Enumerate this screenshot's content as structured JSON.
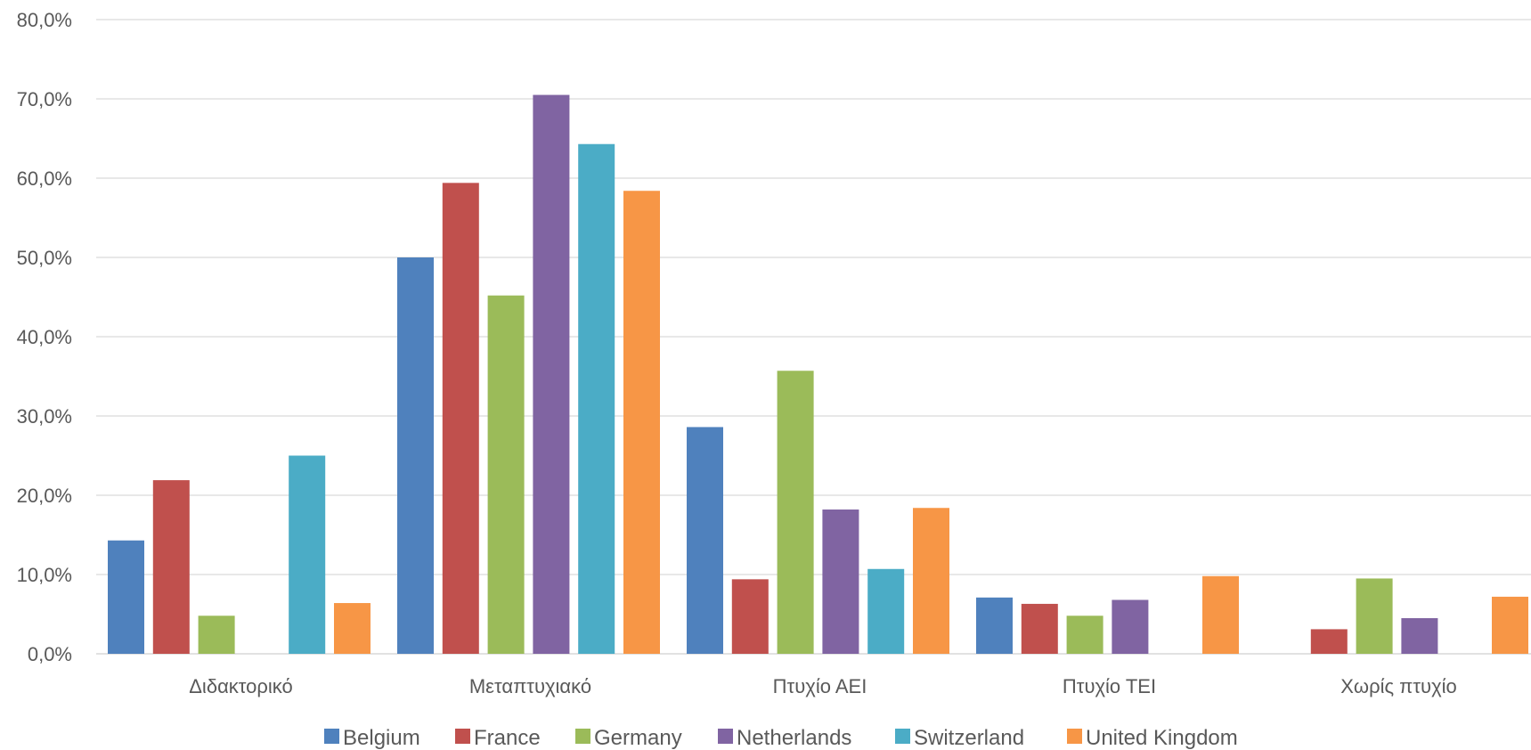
{
  "chart_data": {
    "type": "bar",
    "categories": [
      "Διδακτορικό",
      "Μεταπτυχιακό",
      "Πτυχίο ΑΕΙ",
      "Πτυχίο ΤΕΙ",
      "Χωρίς πτυχίο"
    ],
    "series": [
      {
        "name": "Belgium",
        "color": "#4F81BD",
        "values": [
          14.3,
          50.0,
          28.6,
          7.1,
          0.0
        ]
      },
      {
        "name": "France",
        "color": "#C0504D",
        "values": [
          21.9,
          59.4,
          9.4,
          6.3,
          3.1
        ]
      },
      {
        "name": "Germany",
        "color": "#9BBB59",
        "values": [
          4.8,
          45.2,
          35.7,
          4.8,
          9.5
        ]
      },
      {
        "name": "Netherlands",
        "color": "#8064A2",
        "values": [
          0.0,
          70.5,
          18.2,
          6.8,
          4.5
        ]
      },
      {
        "name": "Switzerland",
        "color": "#4BACC6",
        "values": [
          25.0,
          64.3,
          10.7,
          0.0,
          0.0
        ]
      },
      {
        "name": "United Kingdom",
        "color": "#F79646",
        "values": [
          6.4,
          58.4,
          18.4,
          9.8,
          7.2
        ]
      }
    ],
    "ylim": [
      0,
      80
    ],
    "yticks": [
      "0,0%",
      "10,0%",
      "20,0%",
      "30,0%",
      "40,0%",
      "50,0%",
      "60,0%",
      "70,0%",
      "80,0%"
    ],
    "grid": true,
    "legend_position": "bottom",
    "title": "",
    "xlabel": "",
    "ylabel": ""
  }
}
